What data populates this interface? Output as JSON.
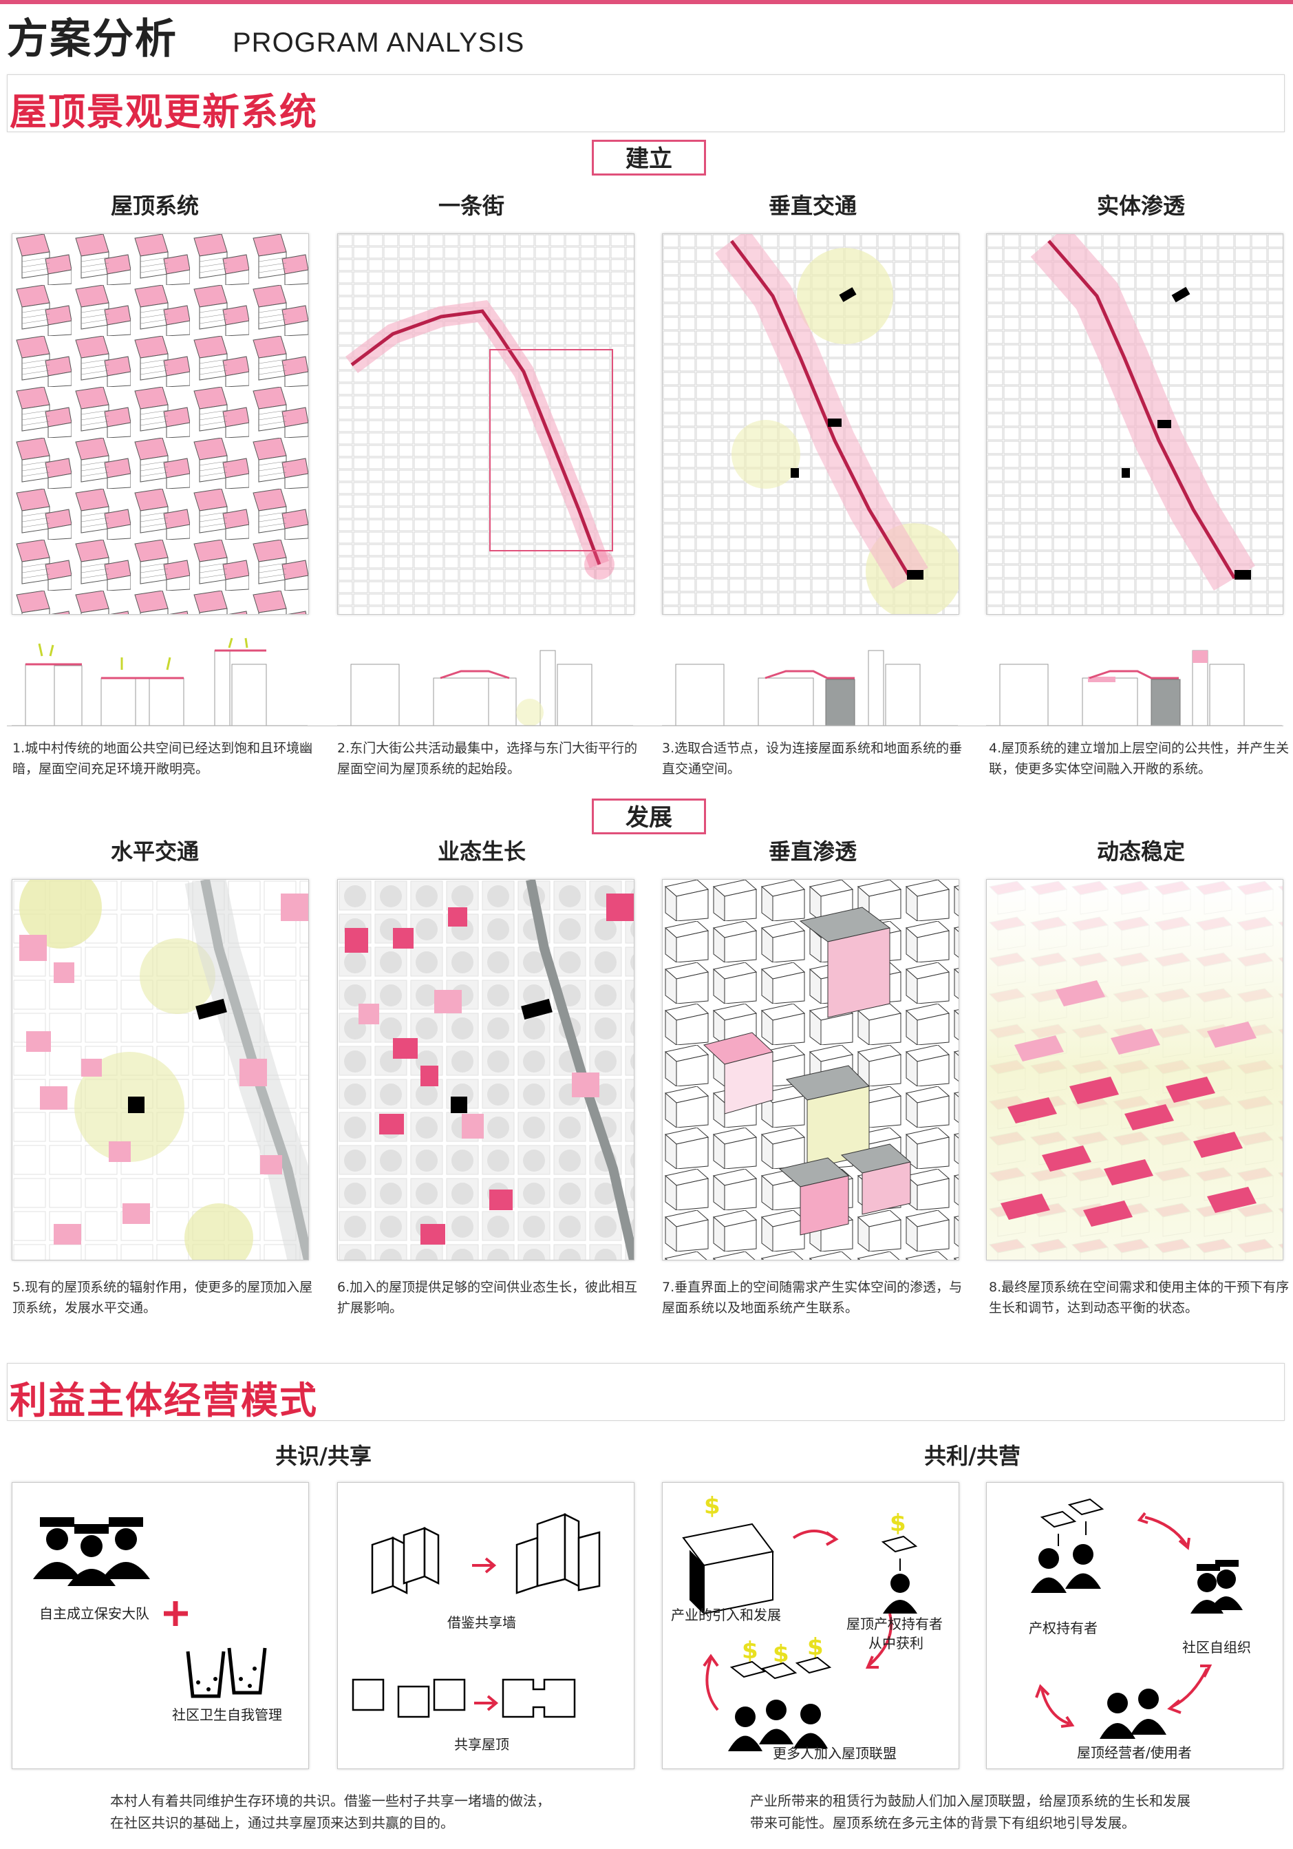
{
  "header": {
    "title_cn": "方案分析",
    "title_en": "PROGRAM ANALYSIS"
  },
  "section1": {
    "title": "屋顶景观更新系统",
    "stage1": {
      "tag": "建立",
      "columns": [
        {
          "title": "屋顶系统",
          "caption": "1.城中村传统的地面公共空间已经达到饱和且环境幽暗，屋面空间充足环境开敞明亮。"
        },
        {
          "title": "一条街",
          "caption": "2.东门大街公共活动最集中，选择与东门大街平行的屋面空间为屋顶系统的起始段。"
        },
        {
          "title": "垂直交通",
          "caption": "3.选取合适节点，设为连接屋面系统和地面系统的垂直交通空间。"
        },
        {
          "title": "实体渗透",
          "caption": "4.屋顶系统的建立增加上层空间的公共性，并产生关联，使更多实体空间融入开敞的系统。"
        }
      ]
    },
    "stage2": {
      "tag": "发展",
      "columns": [
        {
          "title": "水平交通",
          "caption": "5.现有的屋顶系统的辐射作用，使更多的屋顶加入屋顶系统，发展水平交通。"
        },
        {
          "title": "业态生长",
          "caption": "6.加入的屋顶提供足够的空间供业态生长，彼此相互扩展影响。"
        },
        {
          "title": "垂直渗透",
          "caption": "7.垂直界面上的空间随需求产生实体空间的渗透，与屋面系统以及地面系统产生联系。"
        },
        {
          "title": "动态稳定",
          "caption": "8.最终屋顶系统在空间需求和使用主体的干预下有序生长和调节，达到动态平衡的状态。"
        }
      ]
    }
  },
  "section2": {
    "title": "利益主体经营模式",
    "left": {
      "heading": "共识/共享",
      "panel1": {
        "label_guard": "自主成立保安大队",
        "label_hygiene": "社区卫生自我管理"
      },
      "panel2": {
        "label_wall": "借鉴共享墙",
        "label_roof": "共享屋顶"
      },
      "paragraph": "本村人有着共同维护生存环境的共识。借鉴一些村子共享一堵墙的做法，在社区共识的基础上，通过共享屋顶来达到共赢的目的。"
    },
    "right": {
      "heading": "共利/共营",
      "panel3": {
        "label_industry": "产业的引入和发展",
        "label_owner_profit_1": "屋顶产权持有者",
        "label_owner_profit_2": "从中获利",
        "label_more": "更多人加入屋顶联盟"
      },
      "panel4": {
        "label_owner": "产权持有者",
        "label_community": "社区自组织",
        "label_operator": "屋顶经营者/使用者"
      },
      "paragraph": "产业所带来的租赁行为鼓励人们加入屋顶联盟，给屋顶系统的生长和发展带来可能性。屋顶系统在多元主体的背景下有组织地引导发展。"
    }
  },
  "colors": {
    "accent": "#e0507a",
    "title_red": "#e02848",
    "pink": "#f2a6c0",
    "street": "#b8204a",
    "yellow": "#eef0b8",
    "gray": "#a9adad"
  }
}
